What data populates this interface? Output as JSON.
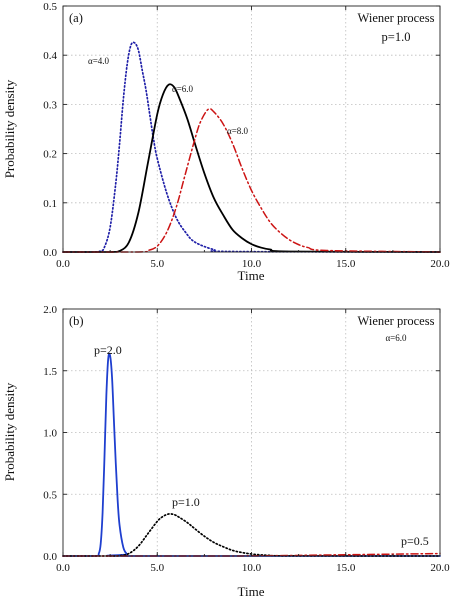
{
  "chart_data": [
    {
      "type": "line",
      "panel_label": "(a)",
      "annotation": [
        "Wiener process",
        "p=1.0"
      ],
      "xlabel": "Time",
      "ylabel": "Probability density",
      "xlim": [
        0,
        20
      ],
      "ylim": [
        0,
        0.5
      ],
      "xticks": [
        "0.0",
        "5.0",
        "10.0",
        "15.0",
        "20.0"
      ],
      "yticks": [
        "0.0",
        "0.1",
        "0.2",
        "0.3",
        "0.4",
        "0.5"
      ],
      "grid": true,
      "series": [
        {
          "name": "α=4.0",
          "color": "#1f1fa8",
          "dash": "dotted",
          "x": [
            0,
            1.5,
            2.0,
            2.2,
            2.5,
            2.8,
            3.0,
            3.2,
            3.4,
            3.6,
            3.8,
            4.0,
            4.2,
            4.4,
            4.6,
            4.8,
            5.0,
            5.5,
            6.0,
            6.5,
            7.0,
            8.0,
            9.0,
            20.0
          ],
          "y": [
            0,
            0,
            0.002,
            0.01,
            0.05,
            0.14,
            0.22,
            0.31,
            0.38,
            0.42,
            0.425,
            0.41,
            0.37,
            0.33,
            0.28,
            0.23,
            0.19,
            0.12,
            0.07,
            0.04,
            0.02,
            0.005,
            0.001,
            0
          ]
        },
        {
          "name": "α=6.0",
          "color": "#000000",
          "dash": "solid",
          "x": [
            0,
            2.5,
            3.0,
            3.5,
            4.0,
            4.5,
            5.0,
            5.3,
            5.6,
            5.9,
            6.2,
            6.6,
            7.0,
            7.5,
            8.0,
            8.5,
            9.0,
            9.5,
            10.0,
            10.5,
            11.0,
            12.0,
            20.0
          ],
          "y": [
            0,
            0,
            0.002,
            0.02,
            0.08,
            0.18,
            0.28,
            0.32,
            0.34,
            0.335,
            0.31,
            0.27,
            0.22,
            0.16,
            0.11,
            0.075,
            0.045,
            0.028,
            0.016,
            0.009,
            0.005,
            0.001,
            0
          ]
        },
        {
          "name": "α=8.0",
          "color": "#cc1414",
          "dash": "dashdot",
          "x": [
            0,
            4.0,
            4.5,
            5.0,
            5.5,
            6.0,
            6.5,
            7.0,
            7.3,
            7.7,
            8.0,
            8.5,
            9.0,
            9.5,
            10.0,
            10.5,
            11.0,
            11.5,
            12.0,
            12.5,
            13.0,
            14.0,
            20.0
          ],
          "y": [
            0,
            0,
            0.003,
            0.012,
            0.04,
            0.09,
            0.16,
            0.23,
            0.265,
            0.29,
            0.285,
            0.26,
            0.22,
            0.17,
            0.125,
            0.09,
            0.06,
            0.04,
            0.025,
            0.015,
            0.009,
            0.003,
            0
          ]
        }
      ]
    },
    {
      "type": "line",
      "panel_label": "(b)",
      "annotation": [
        "Wiener process",
        "α=6.0"
      ],
      "xlabel": "Time",
      "ylabel": "Probability density",
      "xlim": [
        0,
        20
      ],
      "ylim": [
        0,
        2.0
      ],
      "xticks": [
        "0.0",
        "5.0",
        "10.0",
        "15.0",
        "20.0"
      ],
      "yticks": [
        "0.0",
        "0.5",
        "1.0",
        "1.5",
        "2.0"
      ],
      "grid": true,
      "series": [
        {
          "name": "p=2.0",
          "color": "#1f3fcf",
          "dash": "solid",
          "x": [
            0,
            1.7,
            1.9,
            2.0,
            2.1,
            2.2,
            2.3,
            2.4,
            2.5,
            2.6,
            2.7,
            2.8,
            2.9,
            3.0,
            3.2,
            3.4,
            3.6,
            20.0
          ],
          "y": [
            0,
            0,
            0.02,
            0.1,
            0.35,
            0.8,
            1.3,
            1.6,
            1.62,
            1.45,
            1.1,
            0.75,
            0.45,
            0.25,
            0.07,
            0.015,
            0,
            0
          ]
        },
        {
          "name": "p=1.0",
          "color": "#000000",
          "dash": "dotted",
          "x": [
            0,
            2.5,
            3.0,
            3.5,
            4.0,
            4.5,
            5.0,
            5.3,
            5.6,
            5.9,
            6.2,
            6.6,
            7.0,
            7.5,
            8.0,
            8.5,
            9.0,
            9.5,
            10.0,
            10.5,
            11.0,
            12.0,
            20.0
          ],
          "y": [
            0,
            0,
            0.002,
            0.02,
            0.08,
            0.18,
            0.28,
            0.32,
            0.34,
            0.335,
            0.31,
            0.27,
            0.22,
            0.16,
            0.11,
            0.075,
            0.045,
            0.028,
            0.016,
            0.009,
            0.005,
            0.001,
            0
          ]
        },
        {
          "name": "p=0.5",
          "color": "#cc1414",
          "dash": "dashdot",
          "x": [
            0,
            8.0,
            10.0,
            12.0,
            14.0,
            16.0,
            18.0,
            20.0
          ],
          "y": [
            0,
            0,
            0.001,
            0.004,
            0.008,
            0.012,
            0.016,
            0.02
          ]
        }
      ]
    }
  ]
}
